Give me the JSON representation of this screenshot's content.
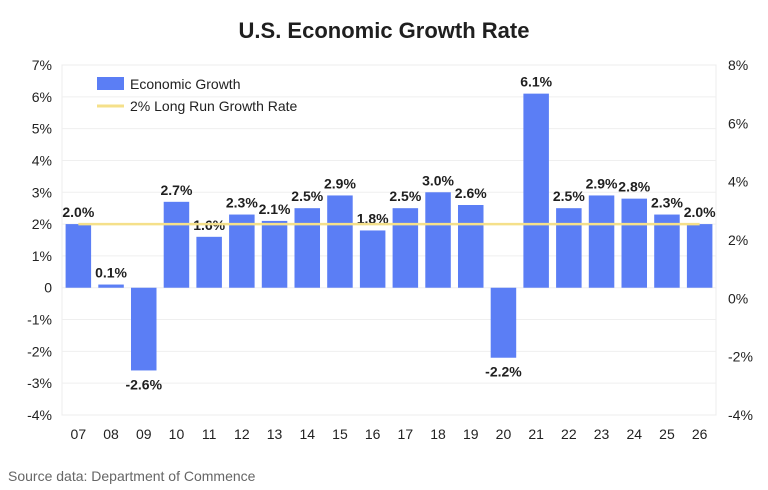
{
  "chart_data": {
    "type": "bar",
    "title": "U.S. Economic Growth Rate",
    "source": "Source data: Department of Commence",
    "categories": [
      "07",
      "08",
      "09",
      "10",
      "11",
      "12",
      "13",
      "14",
      "15",
      "16",
      "17",
      "18",
      "19",
      "20",
      "21",
      "22",
      "23",
      "24",
      "25",
      "26"
    ],
    "series": [
      {
        "name": "Economic Growth",
        "type": "bar",
        "color": "#5b7ef5",
        "values": [
          2.0,
          0.1,
          -2.6,
          2.7,
          1.6,
          2.3,
          2.1,
          2.5,
          2.9,
          1.8,
          2.5,
          3.0,
          2.6,
          -2.2,
          6.1,
          2.5,
          2.9,
          2.8,
          2.3,
          2.0
        ],
        "data_labels": [
          "2.0%",
          "0.1%",
          "-2.6%",
          "2.7%",
          "1.6%",
          "2.3%",
          "2.1%",
          "2.5%",
          "2.9%",
          "1.8%",
          "2.5%",
          "3.0%",
          "2.6%",
          "-2.2%",
          "6.1%",
          "2.5%",
          "2.9%",
          "2.8%",
          "2.3%",
          "2.0%"
        ]
      },
      {
        "name": "2% Long Run Growth Rate",
        "type": "line",
        "color": "#f5e08a",
        "values": [
          2,
          2,
          2,
          2,
          2,
          2,
          2,
          2,
          2,
          2,
          2,
          2,
          2,
          2,
          2,
          2,
          2,
          2,
          2,
          2
        ]
      }
    ],
    "y_left": {
      "ylim": [
        -4,
        7
      ],
      "ticks": [
        7,
        6,
        5,
        4,
        3,
        2,
        1,
        0,
        -1,
        -2,
        -3,
        -4
      ],
      "tick_labels": [
        "7%",
        "6%",
        "5%",
        "4%",
        "3%",
        "2%",
        "1%",
        "0",
        "-1%",
        "-2%",
        "-3%",
        "-4%"
      ]
    },
    "y_right": {
      "ylim": [
        -4,
        8
      ],
      "ticks": [
        8,
        6,
        4,
        2,
        0,
        -2,
        -4
      ],
      "tick_labels": [
        "8%",
        "6%",
        "4%",
        "2%",
        "0%",
        "-2%",
        "-4%"
      ]
    },
    "grid": true,
    "legend_position": "top-left"
  }
}
